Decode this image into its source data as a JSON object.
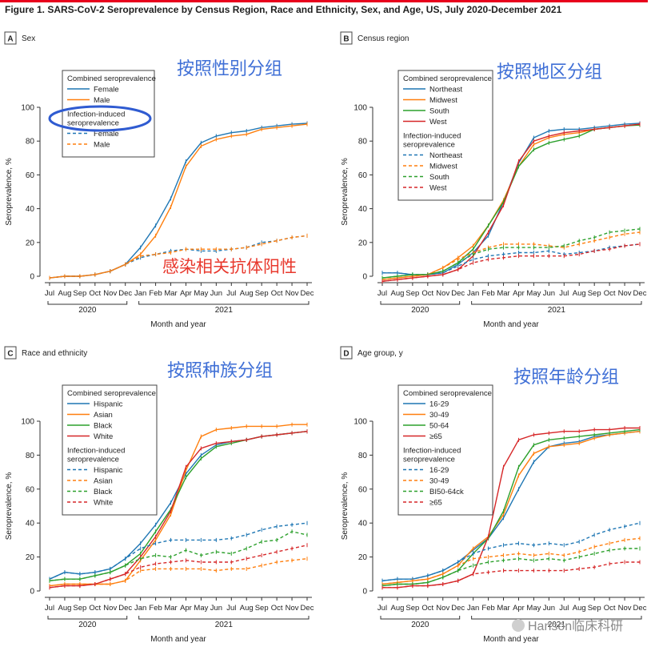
{
  "figure_title": "Figure 1. SARS-CoV-2 Seroprevalence by Census Region, Race and Ethnicity, Sex, and Age, US, July 2020-December 2021",
  "watermark": "Hanson临床科研",
  "colors": {
    "blue": "#1f77b4",
    "orange": "#ff7f0e",
    "green": "#2ca02c",
    "red": "#d62728",
    "title_red": "#e8001c",
    "chinese_label": "#3f6fd6",
    "annotation_red": "#e8392e",
    "ellipse": "#2f5bd1",
    "axis": "#333333",
    "panel_letter_border": "#444444"
  },
  "shared_axes": {
    "months": [
      "Jul",
      "Aug",
      "Sep",
      "Oct",
      "Nov",
      "Dec",
      "Jan",
      "Feb",
      "Mar",
      "Apr",
      "May",
      "Jun",
      "Jul",
      "Aug",
      "Sep",
      "Oct",
      "Nov",
      "Dec"
    ],
    "years": [
      {
        "label": "2020",
        "start": 0,
        "end": 5
      },
      {
        "label": "2021",
        "start": 6,
        "end": 17
      }
    ],
    "xlabel": "Month and year",
    "ylabel": "Seroprevalence, %",
    "yticks": [
      0,
      20,
      40,
      60,
      80,
      100
    ],
    "ylim": [
      0,
      100
    ]
  },
  "chart_data": [
    {
      "type": "line",
      "panel_letter": "A",
      "panel_title": "Sex",
      "chinese_label": "按照性别分组",
      "annotation": "感染相关抗体阳性",
      "legend_location": "upper-left",
      "legend_groups": [
        {
          "title": "Combined seroprevalence",
          "entries": [
            {
              "label": "Female",
              "color": "blue",
              "dashed": false
            },
            {
              "label": "Male",
              "color": "orange",
              "dashed": false
            }
          ]
        },
        {
          "title": "Infection-induced seroprevalence",
          "entries": [
            {
              "label": "Female",
              "color": "blue",
              "dashed": true
            },
            {
              "label": "Male",
              "color": "orange",
              "dashed": true
            }
          ]
        }
      ],
      "series": [
        {
          "name": "Female",
          "group": "combined",
          "color": "blue",
          "dashed": false,
          "values": [
            -1,
            0,
            0,
            1,
            3,
            7,
            17,
            30,
            46,
            68,
            79,
            83,
            85,
            86,
            88,
            89,
            90,
            90.5
          ]
        },
        {
          "name": "Male",
          "group": "combined",
          "color": "orange",
          "dashed": false,
          "values": [
            -1,
            0,
            0,
            1,
            3,
            7,
            13,
            24,
            41,
            65,
            77,
            81,
            83,
            84,
            87,
            88,
            89,
            90
          ]
        },
        {
          "name": "Female",
          "group": "infection",
          "color": "blue",
          "dashed": true,
          "values": [
            -1,
            0,
            0,
            1,
            3,
            7,
            11,
            13,
            15,
            16,
            15,
            15,
            16,
            17,
            20,
            21,
            23,
            24
          ]
        },
        {
          "name": "Male",
          "group": "infection",
          "color": "orange",
          "dashed": true,
          "values": [
            -1,
            0,
            0,
            1,
            3,
            7,
            12,
            13,
            14,
            16,
            16,
            16,
            16,
            17,
            19,
            21,
            23,
            24
          ]
        }
      ]
    },
    {
      "type": "line",
      "panel_letter": "B",
      "panel_title": "Census region",
      "chinese_label": "按照地区分组",
      "annotation": "",
      "legend_location": "upper-left",
      "legend_groups": [
        {
          "title": "Combined seroprevalence",
          "entries": [
            {
              "label": "Northeast",
              "color": "blue",
              "dashed": false
            },
            {
              "label": "Midwest",
              "color": "orange",
              "dashed": false
            },
            {
              "label": "South",
              "color": "green",
              "dashed": false
            },
            {
              "label": "West",
              "color": "red",
              "dashed": false
            }
          ]
        },
        {
          "title": "Infection-induced seroprevalence",
          "entries": [
            {
              "label": "Northeast",
              "color": "blue",
              "dashed": true
            },
            {
              "label": "Midwest",
              "color": "orange",
              "dashed": true
            },
            {
              "label": "South",
              "color": "green",
              "dashed": true
            },
            {
              "label": "West",
              "color": "red",
              "dashed": true
            }
          ]
        }
      ],
      "series": [
        {
          "name": "Northeast",
          "group": "combined",
          "color": "blue",
          "dashed": false,
          "values": [
            2,
            2,
            1,
            1,
            2,
            7,
            14,
            24,
            44,
            67,
            82,
            86,
            87,
            87,
            88,
            89,
            90,
            90.5
          ]
        },
        {
          "name": "Midwest",
          "group": "combined",
          "color": "orange",
          "dashed": false,
          "values": [
            -2,
            -1,
            0,
            1,
            5,
            11,
            18,
            30,
            45,
            65,
            78,
            82,
            84,
            85,
            87,
            88,
            89,
            90
          ]
        },
        {
          "name": "South",
          "group": "combined",
          "color": "green",
          "dashed": false,
          "values": [
            -1,
            0,
            1,
            1,
            3,
            8,
            16,
            30,
            44,
            65,
            75,
            79,
            81,
            83,
            87,
            88,
            89,
            89.5
          ]
        },
        {
          "name": "West",
          "group": "combined",
          "color": "red",
          "dashed": false,
          "values": [
            -3,
            -2,
            -1,
            0,
            1,
            4,
            12,
            26,
            42,
            68,
            80,
            83,
            85,
            86,
            87,
            88,
            89,
            90
          ]
        },
        {
          "name": "Northeast",
          "group": "infection",
          "color": "blue",
          "dashed": true,
          "values": [
            2,
            2,
            1,
            1,
            2,
            6,
            10,
            12,
            13,
            14,
            14,
            15,
            13,
            14,
            15,
            17,
            18,
            19
          ]
        },
        {
          "name": "Midwest",
          "group": "infection",
          "color": "orange",
          "dashed": true,
          "values": [
            -2,
            -1,
            0,
            1,
            5,
            10,
            14,
            17,
            19,
            19,
            19,
            18,
            17,
            19,
            21,
            23,
            25,
            26
          ]
        },
        {
          "name": "South",
          "group": "infection",
          "color": "green",
          "dashed": true,
          "values": [
            -1,
            0,
            1,
            1,
            3,
            8,
            13,
            16,
            17,
            17,
            17,
            17,
            18,
            21,
            23,
            26,
            27,
            28
          ]
        },
        {
          "name": "West",
          "group": "infection",
          "color": "red",
          "dashed": true,
          "values": [
            -3,
            -2,
            -1,
            0,
            1,
            4,
            8,
            10,
            11,
            12,
            12,
            12,
            12,
            13,
            15,
            16,
            18,
            19
          ]
        }
      ]
    },
    {
      "type": "line",
      "panel_letter": "C",
      "panel_title": "Race and ethnicity",
      "chinese_label": "按照种族分组",
      "annotation": "",
      "legend_location": "upper-left",
      "legend_groups": [
        {
          "title": "Combined seroprevalence",
          "entries": [
            {
              "label": "Hispanic",
              "color": "blue",
              "dashed": false
            },
            {
              "label": "Asian",
              "color": "orange",
              "dashed": false
            },
            {
              "label": "Black",
              "color": "green",
              "dashed": false
            },
            {
              "label": "White",
              "color": "red",
              "dashed": false
            }
          ]
        },
        {
          "title": "Infection-induced seroprevalence",
          "entries": [
            {
              "label": "Hispanic",
              "color": "blue",
              "dashed": true
            },
            {
              "label": "Asian",
              "color": "orange",
              "dashed": true
            },
            {
              "label": "Black",
              "color": "green",
              "dashed": true
            },
            {
              "label": "White",
              "color": "red",
              "dashed": true
            }
          ]
        }
      ],
      "series": [
        {
          "name": "Hispanic",
          "group": "combined",
          "color": "blue",
          "dashed": false,
          "values": [
            7,
            11,
            10,
            11,
            13,
            19,
            28,
            39,
            52,
            69,
            80,
            86,
            88,
            89,
            91,
            92,
            93,
            94
          ]
        },
        {
          "name": "Asian",
          "group": "combined",
          "color": "orange",
          "dashed": false,
          "values": [
            3,
            4,
            4,
            4,
            4,
            6,
            18,
            30,
            45,
            71,
            91,
            95,
            96,
            97,
            97,
            97,
            98,
            98
          ]
        },
        {
          "name": "Black",
          "group": "combined",
          "color": "green",
          "dashed": false,
          "values": [
            6,
            7,
            7,
            9,
            11,
            15,
            22,
            35,
            48,
            67,
            78,
            85,
            87,
            89,
            91,
            92,
            93,
            94
          ]
        },
        {
          "name": "White",
          "group": "combined",
          "color": "red",
          "dashed": false,
          "values": [
            2,
            3,
            3,
            4,
            7,
            10,
            20,
            32,
            47,
            73,
            84,
            87,
            88,
            89,
            91,
            92,
            93,
            94
          ]
        },
        {
          "name": "Hispanic",
          "group": "infection",
          "color": "blue",
          "dashed": true,
          "values": [
            7,
            11,
            10,
            11,
            13,
            19,
            25,
            28,
            30,
            30,
            30,
            30,
            31,
            33,
            36,
            38,
            39,
            40
          ]
        },
        {
          "name": "Asian",
          "group": "infection",
          "color": "orange",
          "dashed": true,
          "values": [
            3,
            4,
            4,
            4,
            4,
            6,
            12,
            13,
            13,
            13,
            13,
            12,
            13,
            13,
            15,
            17,
            18,
            19
          ]
        },
        {
          "name": "Black",
          "group": "infection",
          "color": "green",
          "dashed": true,
          "values": [
            6,
            7,
            7,
            9,
            11,
            15,
            19,
            21,
            20,
            24,
            21,
            23,
            22,
            25,
            29,
            30,
            35,
            33
          ]
        },
        {
          "name": "White",
          "group": "infection",
          "color": "red",
          "dashed": true,
          "values": [
            2,
            3,
            3,
            4,
            7,
            10,
            14,
            16,
            17,
            18,
            17,
            17,
            17,
            19,
            21,
            23,
            25,
            27
          ]
        }
      ]
    },
    {
      "type": "line",
      "panel_letter": "D",
      "panel_title": "Age group, y",
      "chinese_label": "按照年龄分组",
      "annotation": "",
      "legend_location": "upper-left",
      "legend_groups": [
        {
          "title": "Combined seroprevalence",
          "entries": [
            {
              "label": "16-29",
              "color": "blue",
              "dashed": false
            },
            {
              "label": "30-49",
              "color": "orange",
              "dashed": false
            },
            {
              "label": "50-64",
              "color": "green",
              "dashed": false
            },
            {
              "label": "≥65",
              "color": "red",
              "dashed": false
            }
          ]
        },
        {
          "title": "Infection-induced seroprevalence",
          "entries": [
            {
              "label": "16-29",
              "color": "blue",
              "dashed": true
            },
            {
              "label": "30-49",
              "color": "orange",
              "dashed": true
            },
            {
              "label": "BI50-64ck",
              "color": "green",
              "dashed": true
            },
            {
              "label": "≥65",
              "color": "red",
              "dashed": true
            }
          ]
        }
      ],
      "series": [
        {
          "name": "16-29",
          "group": "combined",
          "color": "blue",
          "dashed": false,
          "values": [
            6,
            7,
            7,
            9,
            12,
            17,
            24,
            31,
            43,
            60,
            76,
            85,
            87,
            88,
            91,
            92,
            93,
            94
          ]
        },
        {
          "name": "30-49",
          "group": "combined",
          "color": "orange",
          "dashed": false,
          "values": [
            4,
            5,
            6,
            7,
            10,
            15,
            25,
            32,
            45,
            68,
            81,
            85,
            86,
            87,
            90,
            92,
            93,
            94
          ]
        },
        {
          "name": "50-64",
          "group": "combined",
          "color": "green",
          "dashed": false,
          "values": [
            3,
            4,
            4,
            5,
            8,
            12,
            22,
            31,
            47,
            73,
            86,
            89,
            90,
            91,
            92,
            93,
            94,
            95
          ]
        },
        {
          "name": "≥65",
          "group": "combined",
          "color": "red",
          "dashed": false,
          "values": [
            2,
            2,
            3,
            3,
            4,
            6,
            10,
            32,
            73,
            89,
            92,
            93,
            94,
            94,
            95,
            95,
            96,
            96
          ]
        },
        {
          "name": "16-29",
          "group": "infection",
          "color": "blue",
          "dashed": true,
          "values": [
            6,
            7,
            7,
            9,
            12,
            17,
            22,
            25,
            27,
            28,
            27,
            28,
            27,
            29,
            33,
            36,
            38,
            40
          ]
        },
        {
          "name": "30-49",
          "group": "infection",
          "color": "orange",
          "dashed": true,
          "values": [
            4,
            5,
            6,
            7,
            10,
            15,
            19,
            20,
            21,
            22,
            21,
            22,
            21,
            23,
            26,
            28,
            30,
            31
          ]
        },
        {
          "name": "BI50-64ck",
          "group": "infection",
          "color": "green",
          "dashed": true,
          "values": [
            3,
            4,
            4,
            5,
            8,
            12,
            15,
            17,
            18,
            19,
            18,
            19,
            18,
            20,
            22,
            24,
            25,
            25
          ]
        },
        {
          "name": "≥65",
          "group": "infection",
          "color": "red",
          "dashed": true,
          "values": [
            2,
            2,
            3,
            3,
            4,
            6,
            10,
            11,
            12,
            12,
            12,
            12,
            12,
            13,
            14,
            16,
            17,
            17
          ]
        }
      ]
    }
  ]
}
